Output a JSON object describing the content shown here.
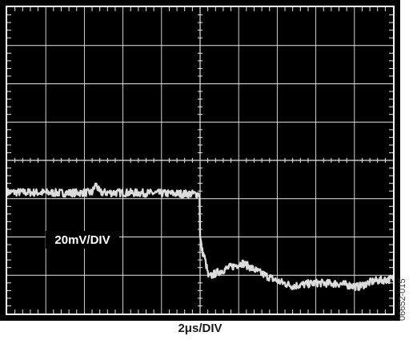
{
  "chart_data": {
    "type": "line",
    "divisions": {
      "x": 10,
      "y": 8
    },
    "minor_ticks_per_division": 5,
    "x_scale_label": "2μs/DIV",
    "y_scale_label": "20mV/DIV",
    "figure_id": "06652-015",
    "grid": true,
    "colors": {
      "screen": "#000000",
      "grid": "#e6e6e6",
      "trace": "#dcdcdc",
      "label_background": "#000000",
      "label_text": "#ffffff"
    },
    "series": [
      {
        "x_div": [
          0,
          1.5,
          2.2,
          2.3,
          2.4,
          3.5,
          4.99,
          5.0,
          5.05,
          5.12,
          5.22,
          5.4,
          5.7,
          6.1,
          6.6,
          7.0,
          7.4,
          8.0,
          8.6,
          9.1,
          9.5,
          10.0
        ],
        "y_div": [
          -0.83,
          -0.85,
          -0.84,
          -0.62,
          -0.84,
          -0.85,
          -0.88,
          -2.0,
          -2.35,
          -2.55,
          -3.05,
          -2.95,
          -2.82,
          -2.68,
          -2.96,
          -3.15,
          -3.28,
          -3.2,
          -3.22,
          -3.3,
          -3.15,
          -3.1
        ]
      }
    ]
  }
}
